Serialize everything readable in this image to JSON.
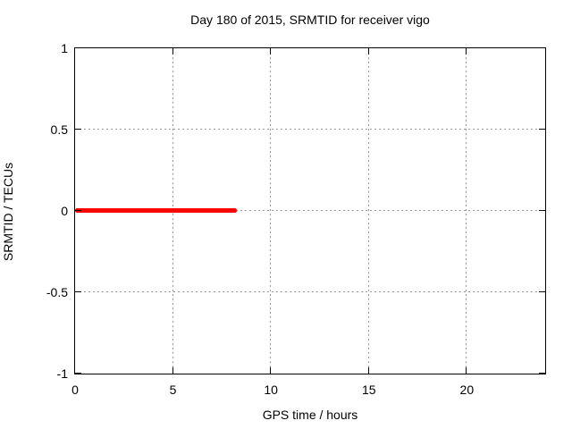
{
  "title": "Day 180 of 2015, SRMTID for receiver vigo",
  "chart_data": {
    "type": "line",
    "title": "Day 180 of 2015, SRMTID for receiver vigo",
    "xlabel": "GPS time / hours",
    "ylabel": "SRMTID / TECUs",
    "xlim": [
      0,
      24
    ],
    "ylim": [
      -1,
      1
    ],
    "x_ticks": [
      0,
      5,
      10,
      15,
      20
    ],
    "x_tick_labels": [
      "0",
      "5",
      "10",
      "15",
      "20"
    ],
    "y_ticks": [
      -1,
      -0.5,
      0,
      0.5,
      1
    ],
    "y_tick_labels": [
      "-1",
      "-0.5",
      "0",
      "0.5",
      "1"
    ],
    "grid": true,
    "legend": "none",
    "series": [
      {
        "name": "SRMTID",
        "color": "#ff0000",
        "linewidth": 4.5,
        "points": [
          [
            0,
            0
          ],
          [
            8.3,
            0
          ]
        ]
      }
    ],
    "colors": {
      "background": "#ffffff",
      "border": "#000000",
      "grid": "#999999",
      "text": "#000000",
      "series": "#ff0000"
    }
  }
}
